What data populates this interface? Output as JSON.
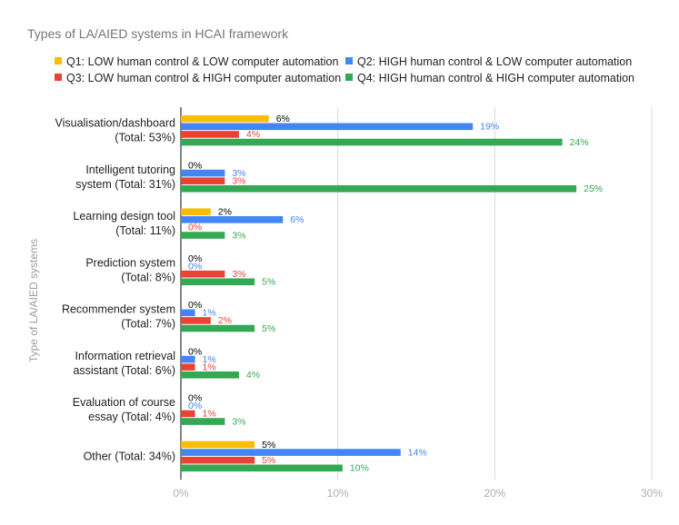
{
  "chart_data": {
    "type": "bar",
    "orientation": "horizontal",
    "title": "Types of LA/AIED systems in HCAI framework",
    "ylabel": "Type of LA/AIED systems",
    "xlabel": "",
    "categories": [
      [
        "Visualisation/dashboard",
        "(Total: 53%)"
      ],
      [
        "Intelligent tutoring",
        "system (Total: 31%)"
      ],
      [
        "Learning design tool",
        "(Total: 11%)"
      ],
      [
        "Prediction system",
        "(Total: 8%)"
      ],
      [
        "Recommender system",
        "(Total: 7%)"
      ],
      [
        "Information retrieval",
        "assistant (Total: 6%)"
      ],
      [
        "Evaluation of course",
        "essay (Total: 4%)"
      ],
      [
        "Other (Total: 34%)"
      ]
    ],
    "series": [
      {
        "name": "Q1: LOW human control & LOW computer automation",
        "color": "#fbbc04",
        "values": [
          5.6,
          0,
          1.9,
          0,
          0,
          0,
          0,
          4.7
        ],
        "labels": [
          "6%",
          "0%",
          "2%",
          "0%",
          "0%",
          "0%",
          "0%",
          "5%"
        ]
      },
      {
        "name": "Q2: HIGH human control & LOW computer automation",
        "color": "#4285f4",
        "values": [
          18.6,
          2.8,
          6.5,
          0,
          0.9,
          0.9,
          0,
          14.0
        ],
        "labels": [
          "19%",
          "3%",
          "6%",
          "0%",
          "1%",
          "1%",
          "0%",
          "14%"
        ]
      },
      {
        "name": "Q3: LOW human control & HIGH computer automation",
        "color": "#ea4335",
        "values": [
          3.7,
          2.8,
          0,
          2.8,
          1.9,
          0.9,
          0.9,
          4.7
        ],
        "labels": [
          "4%",
          "3%",
          "0%",
          "3%",
          "2%",
          "1%",
          "1%",
          "5%"
        ]
      },
      {
        "name": "Q4: HIGH human control & HIGH computer automation",
        "color": "#34a853",
        "values": [
          24.3,
          25.2,
          2.8,
          4.7,
          4.7,
          3.7,
          2.8,
          10.3
        ],
        "labels": [
          "24%",
          "25%",
          "3%",
          "5%",
          "5%",
          "4%",
          "3%",
          "10%"
        ]
      }
    ],
    "xlim": [
      0,
      30
    ],
    "xticks": [
      "0%",
      "10%",
      "20%",
      "30%"
    ],
    "xtick_values": [
      0,
      10,
      20,
      30
    ],
    "grid": true,
    "legend_position": "top"
  }
}
